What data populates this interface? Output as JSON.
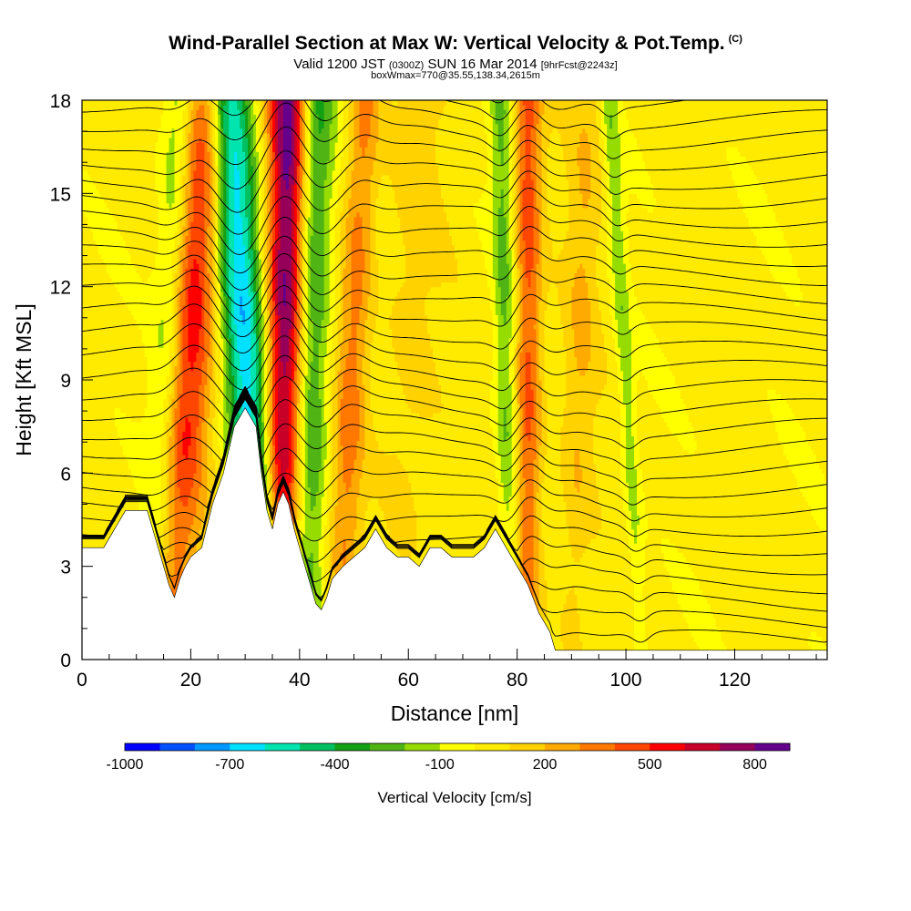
{
  "header": {
    "title": "Wind-Parallel Section at Max W: Vertical Velocity & Pot.Temp.",
    "copyright": "(C)",
    "valid_a": "Valid 1200 JST",
    "valid_b": "(0300Z)",
    "valid_c": "SUN 16 Mar 2014",
    "valid_d": "[9hrFcst@2243z]",
    "box_info": "boxWmax=770@35.55,138.34,2615m"
  },
  "colors": {
    "terrain": "#ffffff",
    "contour_line": "#000000",
    "background": "#ffffff"
  },
  "chart_data": {
    "type": "heatmap",
    "xlabel": "Distance [nm]",
    "ylabel": "Height [Kft MSL]",
    "xlim": [
      0,
      137
    ],
    "ylim": [
      0,
      18
    ],
    "x_ticks": [
      "0",
      "20",
      "40",
      "60",
      "80",
      "100",
      "120"
    ],
    "x_tick_values": [
      0,
      20,
      40,
      60,
      80,
      100,
      120
    ],
    "y_ticks": [
      "0",
      "3",
      "6",
      "9",
      "12",
      "15",
      "18"
    ],
    "y_tick_values": [
      0,
      3,
      6,
      9,
      12,
      15,
      18
    ],
    "terrain_profile": {
      "x": [
        0,
        4,
        6,
        8,
        12,
        13,
        14,
        15,
        16,
        17,
        18,
        19,
        20,
        22,
        24,
        26,
        28,
        30,
        32,
        33,
        34,
        35,
        36,
        37,
        38,
        39,
        40,
        41,
        42,
        43,
        44,
        45,
        46,
        48,
        50,
        52,
        54,
        56,
        58,
        60,
        62,
        64,
        66,
        68,
        70,
        72,
        74,
        76,
        78,
        80,
        82,
        84,
        86,
        87,
        88,
        90,
        95,
        100,
        110,
        120,
        130,
        137
      ],
      "height": [
        3.6,
        3.6,
        4.2,
        4.8,
        4.8,
        4.2,
        3.6,
        3.0,
        2.4,
        2.0,
        2.6,
        3.0,
        3.3,
        3.6,
        5.0,
        6.0,
        7.5,
        8.1,
        7.5,
        6.0,
        4.8,
        4.2,
        5.0,
        5.4,
        5.0,
        4.2,
        3.6,
        3.0,
        2.4,
        1.8,
        1.6,
        2.0,
        2.6,
        3.0,
        3.3,
        3.6,
        4.2,
        3.6,
        3.3,
        3.3,
        3.0,
        3.6,
        3.6,
        3.3,
        3.3,
        3.3,
        3.6,
        4.2,
        3.6,
        3.0,
        2.4,
        1.5,
        0.9,
        0.3,
        0.3,
        0.3,
        0.3,
        0.3,
        0.3,
        0.3,
        0.3,
        0.3
      ]
    },
    "updrafts_and_downdrafts": [
      {
        "x_base": 15.5,
        "x_top": 23,
        "value_cm_s": 500,
        "width_nm": 4.5
      },
      {
        "x_base": 13,
        "x_top": 18,
        "value_cm_s": -300,
        "width_nm": 3
      },
      {
        "x_base": 33.5,
        "x_top": 27,
        "value_cm_s": -700,
        "width_nm": 4
      },
      {
        "x_base": 36.5,
        "x_top": 38,
        "value_cm_s": 800,
        "width_nm": 3.5
      },
      {
        "x_base": 41,
        "x_top": 43,
        "value_cm_s": -400,
        "width_nm": 3.5
      },
      {
        "x_base": 47,
        "x_top": 52,
        "value_cm_s": 300,
        "width_nm": 3
      },
      {
        "x_base": 82,
        "x_top": 82,
        "value_cm_s": 400,
        "width_nm": 2.5
      },
      {
        "x_base": 79,
        "x_top": 77,
        "value_cm_s": -250,
        "width_nm": 2
      },
      {
        "x_base": 103,
        "x_top": 97,
        "value_cm_s": -200,
        "width_nm": 1.5
      },
      {
        "x_base": 58,
        "x_top": 62,
        "value_cm_s": 100,
        "width_nm": 5
      },
      {
        "x_base": 90,
        "x_top": 93,
        "value_cm_s": 150,
        "width_nm": 3
      }
    ],
    "colorbar": {
      "title": "Vertical Velocity [cm/s]",
      "labels": [
        "-1000",
        "-700",
        "-400",
        "-100",
        "200",
        "500",
        "800"
      ],
      "label_values": [
        -1000,
        -700,
        -400,
        -100,
        200,
        500,
        800
      ],
      "range": [
        -1000,
        900
      ],
      "step": 100,
      "colors": [
        "#0000ff",
        "#0050ff",
        "#0099ff",
        "#00e0ff",
        "#00e5b0",
        "#00c060",
        "#14a014",
        "#50b414",
        "#96dc00",
        "#ffff00",
        "#ffeb00",
        "#ffd200",
        "#ffaa00",
        "#ff7800",
        "#ff4600",
        "#ff0000",
        "#c80028",
        "#96005a",
        "#64008c"
      ]
    }
  }
}
